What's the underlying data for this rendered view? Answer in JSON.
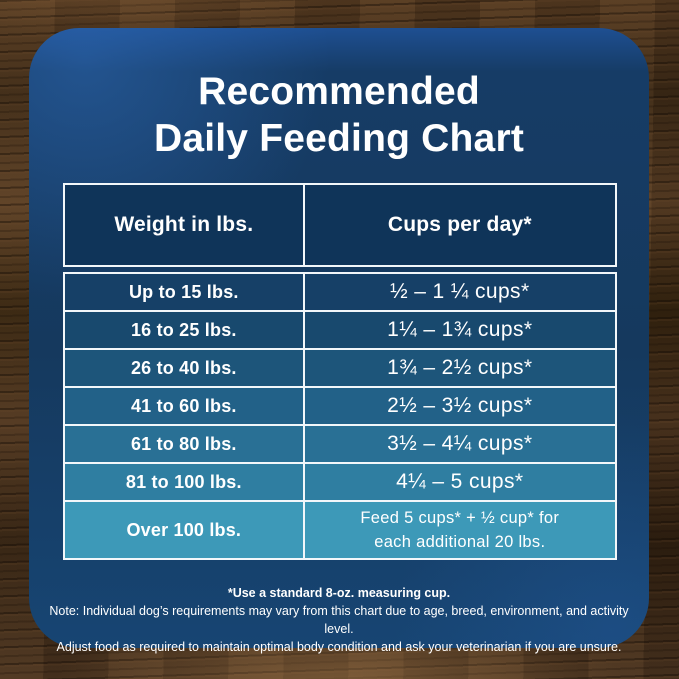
{
  "title": {
    "line1": "Recommended",
    "line2": "Daily Feeding Chart"
  },
  "table": {
    "headers": [
      {
        "label": "Weight in lbs."
      },
      {
        "label": "Cups per day*"
      }
    ],
    "rows": [
      {
        "weight": "Up to 15 lbs.",
        "cups": "½ – 1 ¼ cups*",
        "color": "#164067"
      },
      {
        "weight": "16 to 25 lbs.",
        "cups": "1¼ – 1¾ cups*",
        "color": "#18496e"
      },
      {
        "weight": "26 to 40 lbs.",
        "cups": "1¾ – 2½ cups*",
        "color": "#1d557a"
      },
      {
        "weight": "41 to 60 lbs.",
        "cups": "2½ – 3½ cups*",
        "color": "#226188"
      },
      {
        "weight": "61 to 80 lbs.",
        "cups": "3½ – 4¼ cups*",
        "color": "#297095"
      },
      {
        "weight": "81 to 100 lbs.",
        "cups": "4¼ – 5 cups*",
        "color": "#2f7ea1"
      },
      {
        "weight": "Over 100 lbs.",
        "cups": "Feed 5 cups* + ½ cup* for",
        "cups2": "each additional 20 lbs.",
        "color": "#3d99b8"
      }
    ]
  },
  "footnotes": {
    "measuring_cup": "*Use a standard 8-oz. measuring cup.",
    "note_line1": "Note: Individual dog’s requirements may vary from this chart due to age, breed, environment, and activity level.",
    "note_line2": "Adjust food as required to maintain optimal body condition and ask your veterinarian if you are unsure."
  },
  "colors": {
    "card_blue": "#163c66",
    "card_blue_edge": "#1e4f92",
    "header_cell": "#0f3459",
    "table_border": "#f2f7fa",
    "text": "#ffffff",
    "wood_base": "#422d1a"
  },
  "chart_data": {
    "type": "table",
    "title": "Recommended Daily Feeding Chart",
    "columns": [
      "Weight in lbs.",
      "Cups per day*"
    ],
    "rows": [
      [
        "Up to 15 lbs.",
        "½ – 1 ¼ cups*"
      ],
      [
        "16 to 25 lbs.",
        "1¼ – 1¾ cups*"
      ],
      [
        "26 to 40 lbs.",
        "1¾ – 2½ cups*"
      ],
      [
        "41 to 60 lbs.",
        "2½ – 3½ cups*"
      ],
      [
        "61 to 80 lbs.",
        "3½ – 4¼ cups*"
      ],
      [
        "81 to 100 lbs.",
        "4¼ – 5 cups*"
      ],
      [
        "Over 100 lbs.",
        "Feed 5 cups* + ½ cup* for each additional 20 lbs."
      ]
    ],
    "footnote": "*Use a standard 8-oz. measuring cup.",
    "notes": "Individual dog’s requirements may vary from this chart due to age, breed, environment, and activity level. Adjust food as required to maintain optimal body condition and ask your veterinarian if you are unsure."
  }
}
